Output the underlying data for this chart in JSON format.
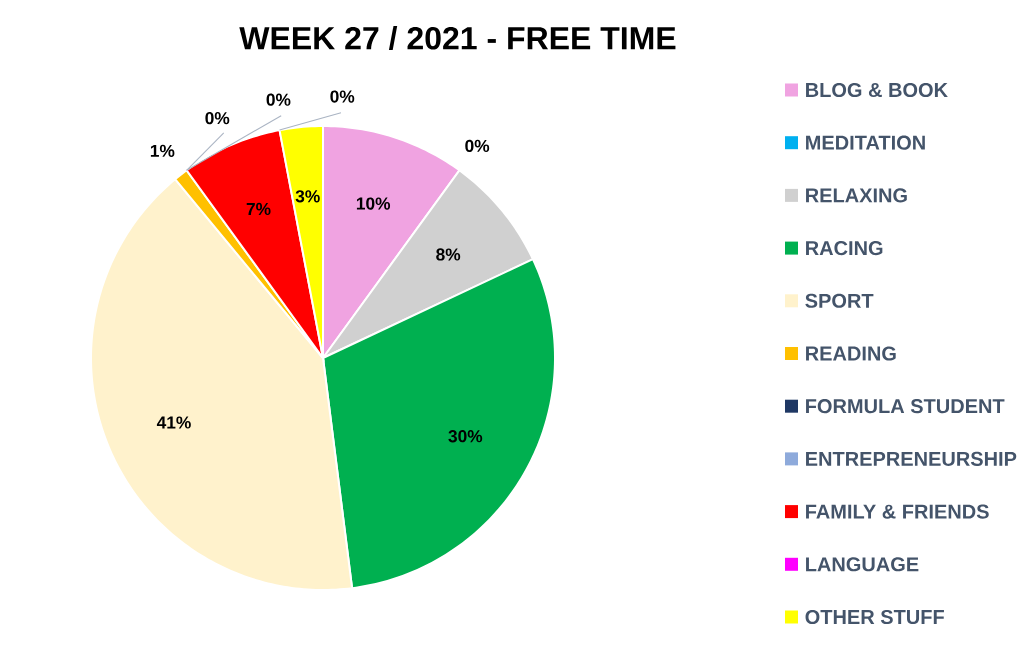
{
  "chart_data": {
    "type": "pie",
    "title": "WEEK 27 / 2021 - FREE TIME",
    "categories": [
      "BLOG & BOOK",
      "MEDITATION",
      "RELAXING",
      "RACING",
      "SPORT",
      "READING",
      "FORMULA STUDENT",
      "ENTREPRENEURSHIP",
      "FAMILY & FRIENDS",
      "LANGUAGE",
      "OTHER STUFF"
    ],
    "values": [
      10,
      0,
      8,
      30,
      41,
      1,
      0,
      0,
      7,
      0,
      3
    ],
    "value_labels": [
      "10%",
      "0%",
      "8%",
      "30%",
      "41%",
      "1%",
      "0%",
      "0%",
      "7%",
      "0%",
      "3%"
    ],
    "colors": [
      "#f0a3e1",
      "#00b0f0",
      "#d0d0d0",
      "#00b050",
      "#fff2cc",
      "#ffc000",
      "#1f3864",
      "#8eaadb",
      "#ff0000",
      "#ff00ff",
      "#ffff00"
    ],
    "legend": "right"
  }
}
